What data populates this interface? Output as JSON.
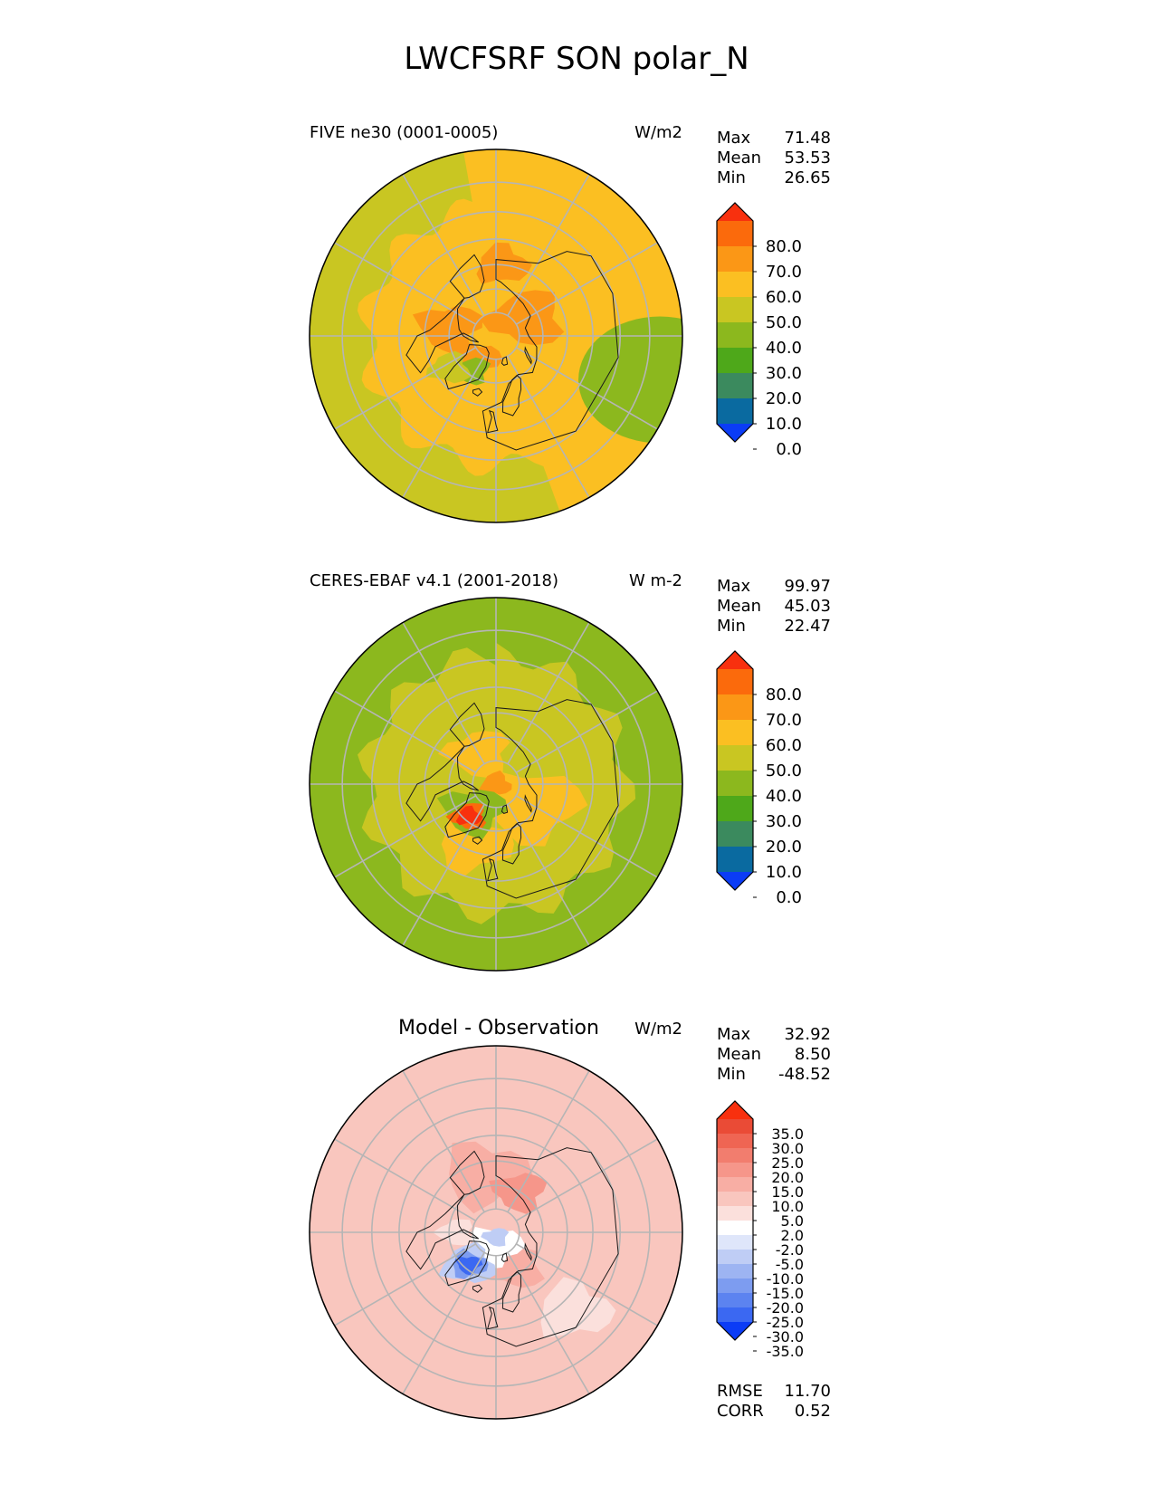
{
  "title": "LWCFSRF SON polar_N",
  "stat_labels": {
    "max": "Max",
    "mean": "Mean",
    "min": "Min",
    "rmse": "RMSE",
    "corr": "CORR"
  },
  "colors": {
    "abs_levels": [
      "#0b3cf6",
      "#0a6aa0",
      "#3b8a5e",
      "#4ea81a",
      "#8cb81e",
      "#c9c622",
      "#fbbf22",
      "#fb9716",
      "#fb6a0c",
      "#f8300e"
    ],
    "diff_levels": [
      "#0b3cf6",
      "#3b68f2",
      "#5c83f0",
      "#7d9cf0",
      "#9db4f2",
      "#bfcdf5",
      "#dfe6fa",
      "#ffffff",
      "#fbe0dc",
      "#f9c6be",
      "#f8aea4",
      "#f6968a",
      "#f27d6e",
      "#ef6553",
      "#ea4b36",
      "#f8300e"
    ],
    "grid": "#b5b5b5",
    "coast": "#1a1a1a"
  },
  "chart_data": [
    {
      "type": "contour-map",
      "projection": "north-polar-stereographic",
      "title_left": "FIVE ne30 (0001-0005)",
      "units": "W/m2",
      "stats": {
        "max": "71.48",
        "mean": "53.53",
        "min": "26.65"
      },
      "colorbar": {
        "extend": "both",
        "tick_labels": [
          "80.0",
          "70.0",
          "60.0",
          "50.0",
          "40.0",
          "30.0",
          "20.0",
          "10.0",
          "0.0"
        ]
      },
      "field": {
        "background_level": 6,
        "features": [
          {
            "level": 5,
            "shape": "outer-ring",
            "lon_ranges": [
              [
                -170,
                20
              ]
            ]
          },
          {
            "level": 4,
            "shape": "rim",
            "lon": 75,
            "lat": 38,
            "r": 22
          },
          {
            "level": 7,
            "shape": "blob",
            "lon": -100,
            "lat": 70,
            "r": 10
          },
          {
            "level": 7,
            "shape": "blob",
            "lon": 120,
            "lat": 75,
            "r": 12
          },
          {
            "level": 7,
            "shape": "blob",
            "lon": 175,
            "lat": 60,
            "r": 8
          },
          {
            "level": 7,
            "shape": "blob",
            "lon": -40,
            "lat": 77,
            "r": 7
          },
          {
            "level": 4,
            "shape": "blob",
            "lon": -35,
            "lat": 72,
            "r": 5
          },
          {
            "level": 5,
            "shape": "blob",
            "lon": -55,
            "lat": 66,
            "r": 6
          }
        ]
      }
    },
    {
      "type": "contour-map",
      "projection": "north-polar-stereographic",
      "title_left": "CERES-EBAF v4.1 (2001-2018)",
      "units": "W m-2",
      "stats": {
        "max": "99.97",
        "mean": "45.03",
        "min": "22.47"
      },
      "colorbar": {
        "extend": "both",
        "tick_labels": [
          "80.0",
          "70.0",
          "60.0",
          "50.0",
          "40.0",
          "30.0",
          "20.0",
          "10.0",
          "0.0"
        ]
      },
      "field": {
        "background_level": 5,
        "features": [
          {
            "level": 4,
            "shape": "outer-ring",
            "lon_ranges": [
              [
                -180,
                180
              ]
            ]
          },
          {
            "level": 6,
            "shape": "blob",
            "lon": 60,
            "lat": 72,
            "r": 16
          },
          {
            "level": 6,
            "shape": "blob",
            "lon": -150,
            "lat": 75,
            "r": 10
          },
          {
            "level": 7,
            "shape": "blob",
            "lon": 0,
            "lat": 90,
            "r": 4
          },
          {
            "level": 6,
            "shape": "blob",
            "lon": -20,
            "lat": 63,
            "r": 12
          },
          {
            "level": 4,
            "shape": "blob",
            "lon": -40,
            "lat": 75,
            "r": 10
          },
          {
            "level": 8,
            "shape": "blob",
            "lon": -40,
            "lat": 72,
            "r": 5
          },
          {
            "level": 9,
            "shape": "blob",
            "lon": -40,
            "lat": 72,
            "r": 3
          }
        ]
      }
    },
    {
      "type": "contour-map",
      "projection": "north-polar-stereographic",
      "title_left": "Model - Observation",
      "units": "W/m2",
      "stats": {
        "max": "32.92",
        "mean": "8.50",
        "min": "-48.52"
      },
      "extra_stats": {
        "rmse": "11.70",
        "corr": "0.52"
      },
      "colorbar": {
        "extend": "both",
        "tick_labels": [
          "35.0",
          "30.0",
          "25.0",
          "20.0",
          "15.0",
          "10.0",
          "5.0",
          "2.0",
          "-2.0",
          "-5.0",
          "-10.0",
          "-15.0",
          "-20.0",
          "-25.0",
          "-30.0",
          "-35.0"
        ]
      },
      "field": {
        "background_level": 9,
        "features": [
          {
            "level": 10,
            "shape": "blob",
            "lon": -170,
            "lat": 65,
            "r": 14
          },
          {
            "level": 11,
            "shape": "blob",
            "lon": 150,
            "lat": 70,
            "r": 8
          },
          {
            "level": 10,
            "shape": "blob",
            "lon": 30,
            "lat": 72,
            "r": 8
          },
          {
            "level": 8,
            "shape": "blob",
            "lon": 45,
            "lat": 45,
            "r": 12
          },
          {
            "level": 7,
            "shape": "blob",
            "lon": 0,
            "lat": 84,
            "r": 8
          },
          {
            "level": 5,
            "shape": "blob",
            "lon": 0,
            "lat": 88,
            "r": 3
          },
          {
            "level": 5,
            "shape": "blob",
            "lon": -40,
            "lat": 72,
            "r": 8
          },
          {
            "level": 3,
            "shape": "blob",
            "lon": -40,
            "lat": 72,
            "r": 5
          },
          {
            "level": 1,
            "shape": "blob",
            "lon": -40,
            "lat": 72,
            "r": 3
          },
          {
            "level": 8,
            "shape": "blob",
            "lon": -90,
            "lat": 73,
            "r": 5
          }
        ]
      }
    }
  ]
}
